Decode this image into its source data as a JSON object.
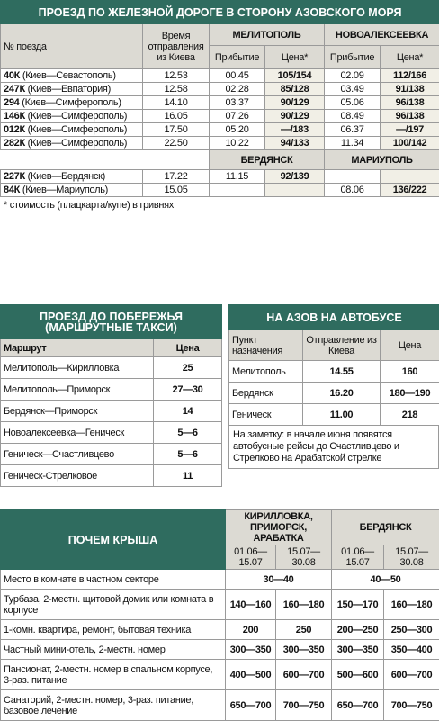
{
  "rail": {
    "title": "ПРОЕЗД ПО ЖЕЛЕЗНОЙ ДОРОГЕ В СТОРОНУ АЗОВСКОГО МОРЯ",
    "train_header": "№ поезда",
    "departure_header": "Время отправления из Киева",
    "cities": [
      "МЕЛИТОПОЛЬ",
      "НОВОАЛЕКСЕЕВКА"
    ],
    "subheaders": [
      "Прибытие",
      "Цена*",
      "Прибытие",
      "Цена*"
    ],
    "rows": [
      {
        "number": "40К",
        "route": "(Киев—Севастополь)",
        "cells": [
          "12.53",
          "00.45",
          "105/154",
          "02.09",
          "112/166"
        ]
      },
      {
        "number": "247К",
        "route": "(Киев—Евпатория)",
        "cells": [
          "12.58",
          "02.28",
          "85/128",
          "03.49",
          "91/138"
        ]
      },
      {
        "number": "294",
        "route": "(Киев—Симферополь)",
        "cells": [
          "14.10",
          "03.37",
          "90/129",
          "05.06",
          "96/138"
        ]
      },
      {
        "number": "146К",
        "route": "(Киев—Симферополь)",
        "cells": [
          "16.05",
          "07.26",
          "90/129",
          "08.49",
          "96/138"
        ]
      },
      {
        "number": "012К",
        "route": "(Киев—Симферополь)",
        "cells": [
          "17.50",
          "05.20",
          "—/183",
          "06.37",
          "—/197"
        ]
      },
      {
        "number": "282К",
        "route": "(Киев—Симферополь)",
        "cells": [
          "22.50",
          "10.22",
          "94/133",
          "11.34",
          "100/142"
        ]
      }
    ],
    "cities_2": [
      "БЕРДЯНСК",
      "МАРИУПОЛЬ"
    ],
    "rows_2": [
      {
        "number": "227К",
        "route": "(Киев—Бердянск)",
        "cells": [
          "17.22",
          "11.15",
          "92/139",
          null,
          null
        ]
      },
      {
        "number": "84К",
        "route": "(Киев—Мариуполь)",
        "cells": [
          "15.05",
          null,
          null,
          "08.06",
          "136/222"
        ]
      }
    ],
    "footnote": "* стоимость (плацкарта/купе) в гривнях"
  },
  "taxi": {
    "title": "ПРОЕЗД ДО ПОБЕРЕЖЬЯ (МАРШРУТНЫЕ ТАКСИ)",
    "headers": [
      "Маршрут",
      "Цена"
    ],
    "rows": [
      [
        "Мелитополь—Кирилловка",
        "25"
      ],
      [
        "Мелитополь—Приморск",
        "27—30"
      ],
      [
        "Бердянск—Приморск",
        "14"
      ],
      [
        "Новоалексеевка—Геническ",
        "5—6"
      ],
      [
        "Геническ—Счастливцево",
        "5—6"
      ],
      [
        "Геническ-Стрелковое",
        "11"
      ]
    ]
  },
  "bus": {
    "title": "НА АЗОВ НА АВТОБУСЕ",
    "headers": [
      "Пункт назначения",
      "Отправление из Киева",
      "Цена"
    ],
    "rows": [
      [
        "Мелитополь",
        "14.55",
        "160"
      ],
      [
        "Бердянск",
        "16.20",
        "180—190"
      ],
      [
        "Геническ",
        "11.00",
        "218"
      ]
    ],
    "note": "На заметку: в начале июня появятся автобусные рейсы до Счастливцево и Стрелково на Арабатской стрелке"
  },
  "housing": {
    "title": "ПОЧЕМ КРЫША",
    "groups": [
      "КИРИЛЛОВКА, ПРИМОРСК, АРАБАТКА",
      "БЕРДЯНСК"
    ],
    "periods": [
      "01.06—15.07",
      "15.07—30.08",
      "01.06—15.07",
      "15.07—30.08"
    ],
    "rows": [
      {
        "label": "Место в комнате в частном секторе",
        "cells": [
          "30—40",
          "40—50"
        ]
      },
      {
        "label": "Турбаза, 2-местн. щитовой домик или комната в корпусе",
        "cells": [
          "140—160",
          "160—180",
          "150—170",
          "160—180"
        ]
      },
      {
        "label": "1-комн. квартира, ремонт, бытовая техника",
        "cells": [
          "200",
          "250",
          "200—250",
          "250—300"
        ]
      },
      {
        "label": "Частный мини-отель, 2-местн. номер",
        "cells": [
          "300—350",
          "300—350",
          "300—350",
          "350—400"
        ]
      },
      {
        "label": "Пансионат, 2-местн. номер в спальном корпусе, 3-раз. питание",
        "cells": [
          "400—500",
          "600—700",
          "500—600",
          "600—700"
        ]
      },
      {
        "label": "Санаторий, 2-местн. номер, 3-раз. питание, базовое лечение",
        "cells": [
          "650—700",
          "700—750",
          "650—700",
          "700—750"
        ]
      }
    ]
  }
}
